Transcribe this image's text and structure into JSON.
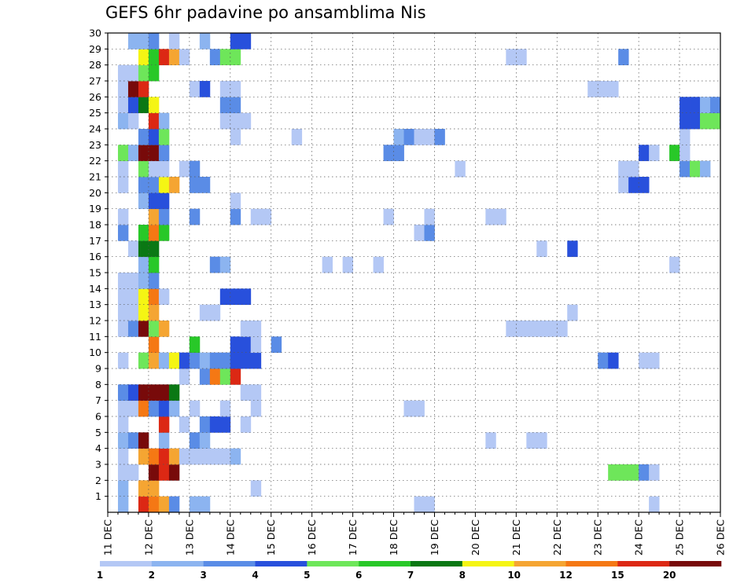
{
  "chart_data": {
    "type": "heatmap",
    "title": "GEFS 6hr padavine po ansamblima Nis",
    "x_tick_labels": [
      "11 DEC",
      "12 DEC",
      "13 DEC",
      "14 DEC",
      "15 DEC",
      "16 DEC",
      "17 DEC",
      "18 DEC",
      "19 DEC",
      "20 DEC",
      "21 DEC",
      "22 DEC",
      "23 DEC",
      "24 DEC",
      "25 DEC",
      "26 DEC"
    ],
    "y_tick_labels": [
      "1",
      "2",
      "3",
      "4",
      "5",
      "6",
      "7",
      "8",
      "9",
      "10",
      "11",
      "12",
      "13",
      "14",
      "15",
      "16",
      "17",
      "18",
      "19",
      "20",
      "21",
      "22",
      "23",
      "24",
      "25",
      "26",
      "27",
      "28",
      "29",
      "30"
    ],
    "x_step": "6hr",
    "xlim_steps": [
      0,
      60
    ],
    "ylim": [
      0,
      30
    ],
    "grid": true,
    "legend_position": "bottom",
    "color_scale": {
      "labels": [
        "1",
        "2",
        "3",
        "4",
        "5",
        "6",
        "7",
        "8",
        "10",
        "12",
        "15",
        "20"
      ],
      "colors": [
        "#b4c8f5",
        "#8cb4f0",
        "#5a8ce6",
        "#2850dc",
        "#6ee65a",
        "#28c828",
        "#0a7814",
        "#f5f514",
        "#f5a532",
        "#f57814",
        "#dc2814",
        "#780a0a"
      ]
    },
    "palette_indices": {
      ".": -1,
      "a": 0,
      "b": 1,
      "c": 2,
      "d": 3,
      "e": 4,
      "f": 5,
      "g": 6,
      "h": 7,
      "i": 8,
      "j": 9,
      "k": 10,
      "l": 11
    },
    "rows": {
      "30": "..bbcma..b..dd...............................................",
      "29": "...hfkia..cee..........................aa.........c..........cae",
      "28": ".aaef........................................................",
      "27": ".alk....ad.aa..................................aaa...........",
      "26": ".adgh......cc...........................................ddbcb.",
      "25": ".bamkb.....aaa..........................................ddeecbadddhd",
      "24": "...cde......a.....a.........bcaac.......................a....",
      "23": ".ebllc.....................cc.......................da.fa.....",
      "22": ".a.eaa.ac.........................a...............aa....ceb....",
      "21": ".a.cchi.cc........................................add.........",
      "20": "...bdd......a.................................................",
      "19": ".a..ic..c...c.aa...........a...a.....aa.......................",
      "18": ".c.fjf........................ac...............................",
      "17": "..agg.....................................a..d.....................",
      "16": "...bf.....cb.........a.a..a............................a......",
      "15": ".aabc.........................................................d",
      "14": ".aahja.....ddd.................................................",
      "13": ".aahi....aa..................................a................",
      "12": ".aclei.......aa........................aaaaaa.................",
      "11": "....j...f...dda.c.............................................",
      "10": ".a.eibhdcbccddd.................................cd..aa.........",
      "9": ".......a.cjek..................................................",
      "8": ".cdlllg......aa.................................................",
      "7": ".aajcdb.a..a..a..............aa..................................",
      "6": ".a...k.a.cdd.a..................................................",
      "5": ".bclmb..cb...........................a...aa......................",
      "4": ".a.ijkiaaaaab.................................................",
      "3": ".aamlkl..........................................eeeca.......",
      "2": ".b.ii.........a.................................................",
      "1": ".b.kjic.bb....................aa.....................a.........."
    }
  }
}
